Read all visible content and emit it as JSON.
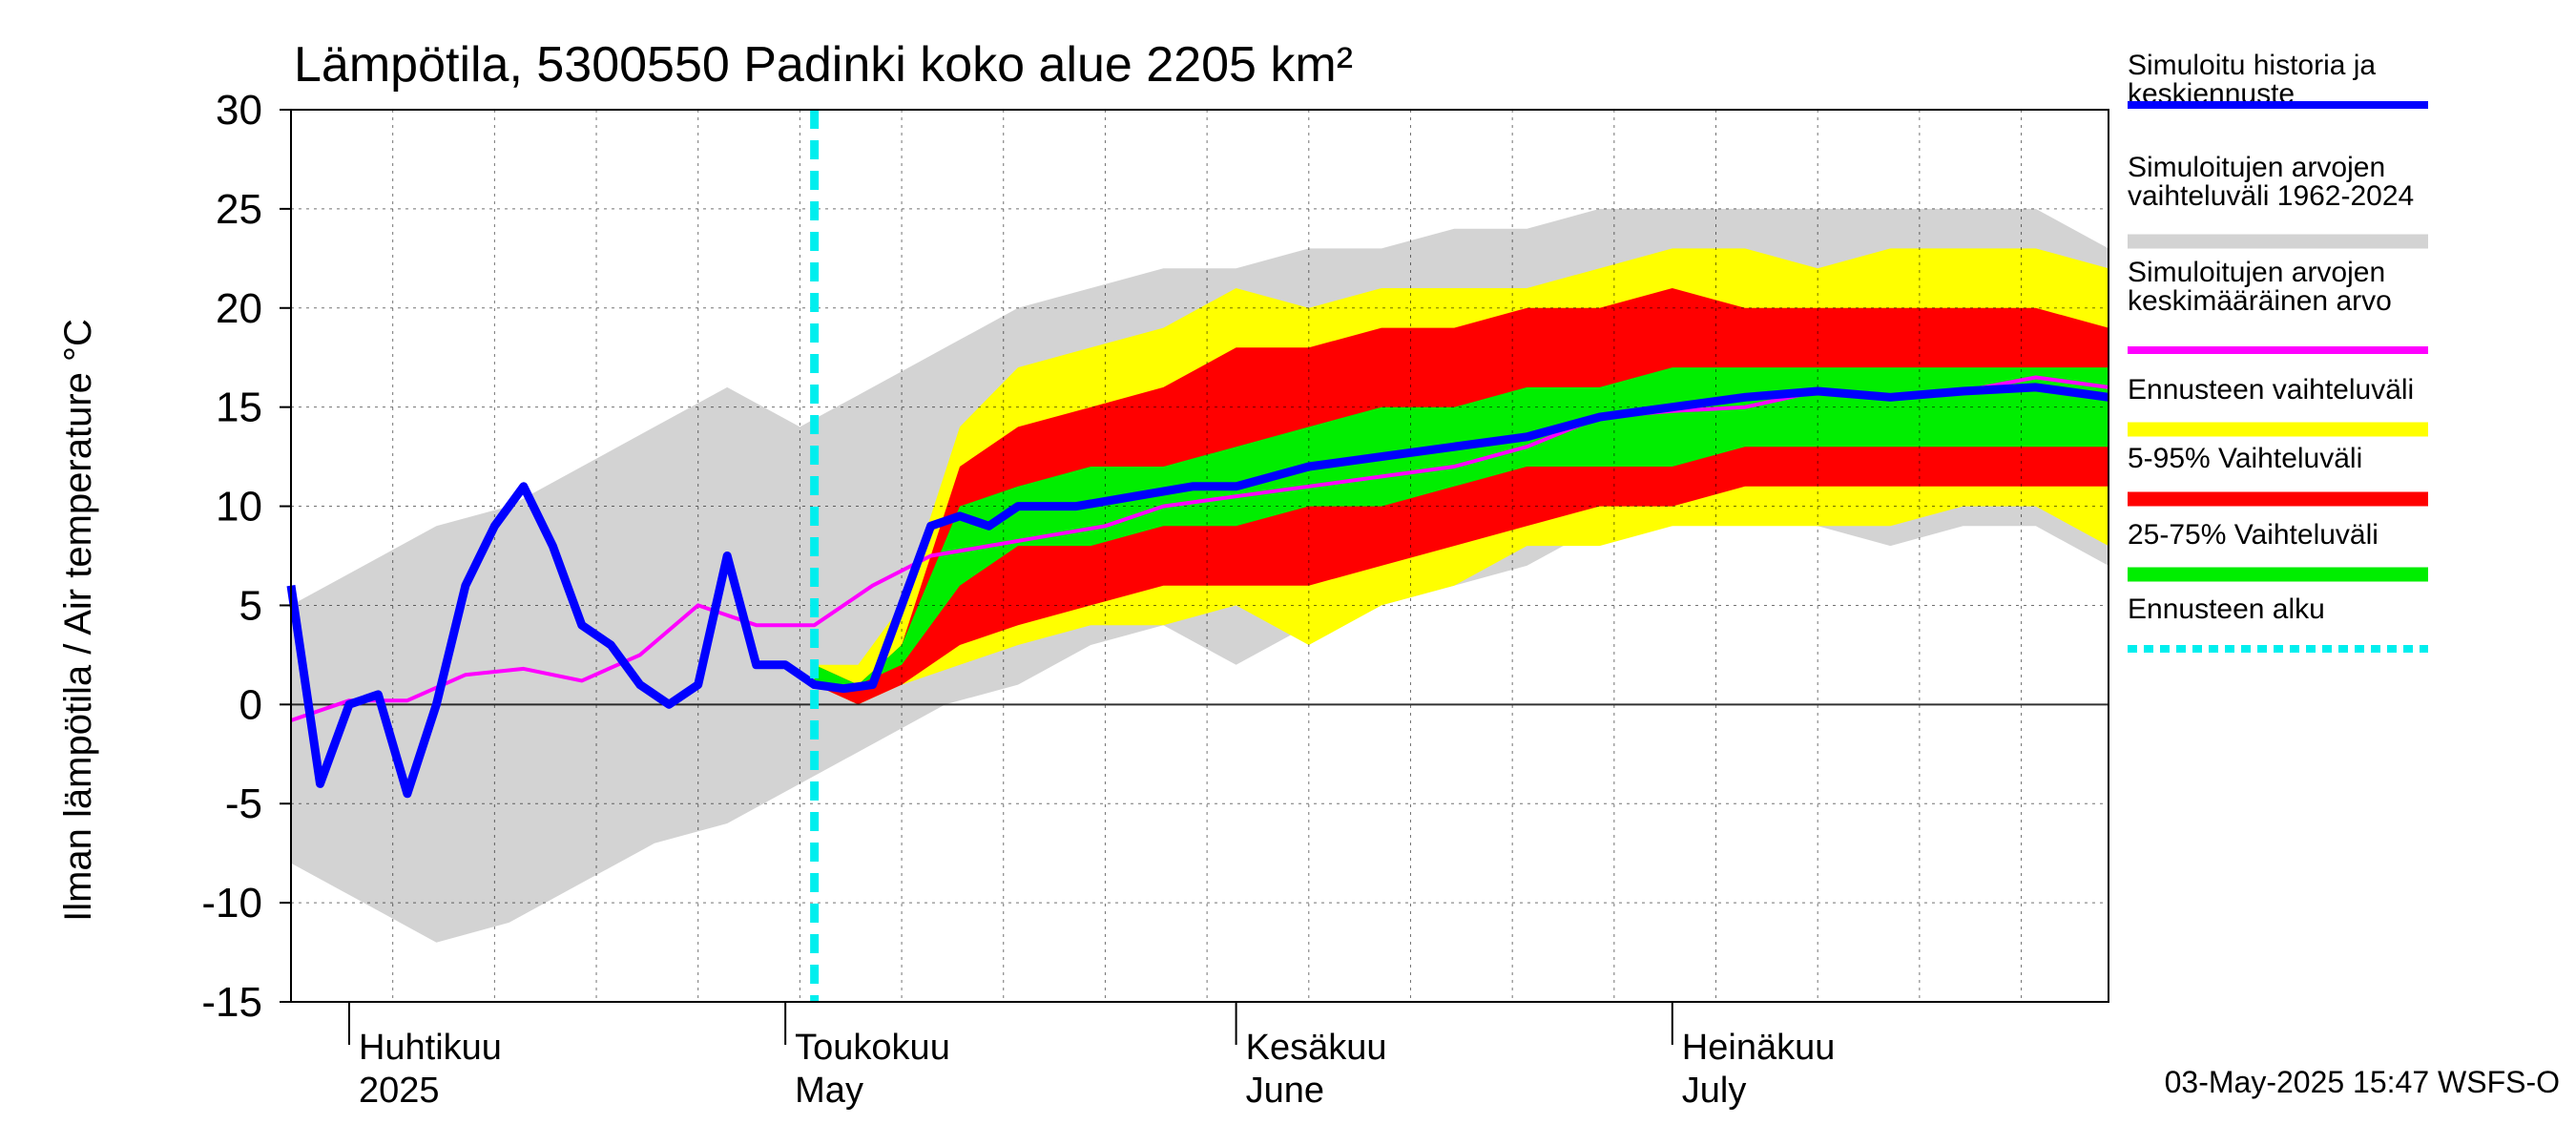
{
  "chart_data": {
    "type": "area",
    "title": "Lämpötila, 5300550 Padinki koko alue 2205 km²",
    "ylabel": "Ilman lämpötila / Air temperature   °C",
    "ylim": [
      -15,
      30
    ],
    "yticks": [
      30,
      25,
      20,
      15,
      10,
      5,
      0,
      -5,
      -10,
      -15
    ],
    "xlim": [
      "2025-03-28",
      "2025-07-31"
    ],
    "month_labels": [
      {
        "fi": "Huhtikuu",
        "en": "2025",
        "date": "2025-04-01"
      },
      {
        "fi": "Toukokuu",
        "en": "May",
        "date": "2025-05-01"
      },
      {
        "fi": "Kesäkuu",
        "en": "June",
        "date": "2025-06-01"
      },
      {
        "fi": "Heinäkuu",
        "en": "July",
        "date": "2025-07-01"
      }
    ],
    "forecast_start": "2025-05-03",
    "timestamp": "03-May-2025 15:47 WSFS-O",
    "legend": [
      {
        "label": "Simuloitu historia ja keskiennuste",
        "color": "#0000ff",
        "style": "line"
      },
      {
        "label": "Simuloitujen arvojen vaihteluväli 1962-2024",
        "color": "#d3d3d3",
        "style": "band"
      },
      {
        "label": "Simuloitujen arvojen keskimääräinen arvo",
        "color": "#ff00ff",
        "style": "line"
      },
      {
        "label": "Ennusteen vaihteluväli",
        "color": "#ffff00",
        "style": "band"
      },
      {
        "label": "5-95% Vaihteluväli",
        "color": "#ff0000",
        "style": "band"
      },
      {
        "label": "25-75% Vaihteluväli",
        "color": "#00ee00",
        "style": "band"
      },
      {
        "label": "Ennusteen alku",
        "color": "#00eeee",
        "style": "dashed"
      }
    ],
    "series": [
      {
        "name": "Simuloitujen arvojen vaihteluväli 1962-2024",
        "kind": "band",
        "x": [
          "2025-03-28",
          "2025-04-02",
          "2025-04-07",
          "2025-04-12",
          "2025-04-17",
          "2025-04-22",
          "2025-04-27",
          "2025-05-02",
          "2025-05-07",
          "2025-05-12",
          "2025-05-17",
          "2025-05-22",
          "2025-05-27",
          "2025-06-01",
          "2025-06-06",
          "2025-06-11",
          "2025-06-16",
          "2025-06-21",
          "2025-06-26",
          "2025-07-01",
          "2025-07-06",
          "2025-07-11",
          "2025-07-16",
          "2025-07-21",
          "2025-07-26",
          "2025-07-31"
        ],
        "low": [
          -8,
          -10,
          -12,
          -11,
          -9,
          -7,
          -6,
          -4,
          -2,
          0,
          1,
          3,
          4,
          2,
          4,
          5,
          6,
          7,
          9,
          9,
          10,
          9,
          8,
          9,
          9,
          7
        ],
        "high": [
          5,
          7,
          9,
          10,
          12,
          14,
          16,
          14,
          16,
          18,
          20,
          21,
          22,
          22,
          23,
          23,
          24,
          24,
          25,
          25,
          25,
          25,
          25,
          25,
          25,
          23
        ]
      },
      {
        "name": "Ennusteen vaihteluväli",
        "kind": "band",
        "x": [
          "2025-05-03",
          "2025-05-06",
          "2025-05-09",
          "2025-05-13",
          "2025-05-17",
          "2025-05-22",
          "2025-05-27",
          "2025-06-01",
          "2025-06-06",
          "2025-06-11",
          "2025-06-16",
          "2025-06-21",
          "2025-06-26",
          "2025-07-01",
          "2025-07-06",
          "2025-07-11",
          "2025-07-16",
          "2025-07-21",
          "2025-07-26",
          "2025-07-31"
        ],
        "low": [
          1,
          0,
          1,
          2,
          3,
          4,
          4,
          5,
          3,
          5,
          6,
          8,
          8,
          9,
          9,
          9,
          9,
          10,
          10,
          8
        ],
        "high": [
          2,
          2,
          5,
          14,
          17,
          18,
          19,
          21,
          20,
          21,
          21,
          21,
          22,
          23,
          23,
          22,
          23,
          23,
          23,
          22
        ]
      },
      {
        "name": "5-95% Vaihteluväli",
        "kind": "band",
        "x": [
          "2025-05-03",
          "2025-05-06",
          "2025-05-09",
          "2025-05-13",
          "2025-05-17",
          "2025-05-22",
          "2025-05-27",
          "2025-06-01",
          "2025-06-06",
          "2025-06-11",
          "2025-06-16",
          "2025-06-21",
          "2025-06-26",
          "2025-07-01",
          "2025-07-06",
          "2025-07-11",
          "2025-07-16",
          "2025-07-21",
          "2025-07-26",
          "2025-07-31"
        ],
        "low": [
          1,
          0,
          1,
          3,
          4,
          5,
          6,
          6,
          6,
          7,
          8,
          9,
          10,
          10,
          11,
          11,
          11,
          11,
          11,
          11
        ],
        "high": [
          2,
          1,
          3,
          12,
          14,
          15,
          16,
          18,
          18,
          19,
          19,
          20,
          20,
          21,
          20,
          20,
          20,
          20,
          20,
          19
        ]
      },
      {
        "name": "25-75% Vaihteluväli",
        "kind": "band",
        "x": [
          "2025-05-03",
          "2025-05-06",
          "2025-05-09",
          "2025-05-13",
          "2025-05-17",
          "2025-05-22",
          "2025-05-27",
          "2025-06-01",
          "2025-06-06",
          "2025-06-11",
          "2025-06-16",
          "2025-06-21",
          "2025-06-26",
          "2025-07-01",
          "2025-07-06",
          "2025-07-11",
          "2025-07-16",
          "2025-07-21",
          "2025-07-26",
          "2025-07-31"
        ],
        "low": [
          1,
          1,
          2,
          6,
          8,
          8,
          9,
          9,
          10,
          10,
          11,
          12,
          12,
          12,
          13,
          13,
          13,
          13,
          13,
          13
        ],
        "high": [
          2,
          1,
          3,
          10,
          11,
          12,
          12,
          13,
          14,
          15,
          15,
          16,
          16,
          17,
          17,
          17,
          17,
          17,
          17,
          17
        ]
      },
      {
        "name": "Simuloitujen arvojen keskimääräinen arvo",
        "kind": "line",
        "x": [
          "2025-03-28",
          "2025-04-01",
          "2025-04-05",
          "2025-04-09",
          "2025-04-13",
          "2025-04-17",
          "2025-04-21",
          "2025-04-25",
          "2025-04-29",
          "2025-05-03",
          "2025-05-07",
          "2025-05-11",
          "2025-05-15",
          "2025-05-19",
          "2025-05-23",
          "2025-05-27",
          "2025-06-01",
          "2025-06-06",
          "2025-06-11",
          "2025-06-16",
          "2025-06-21",
          "2025-06-26",
          "2025-07-01",
          "2025-07-06",
          "2025-07-11",
          "2025-07-16",
          "2025-07-21",
          "2025-07-26",
          "2025-07-31"
        ],
        "y": [
          -0.8,
          0.2,
          0.2,
          1.5,
          1.8,
          1.2,
          2.5,
          5,
          4,
          4,
          6,
          7.5,
          8,
          8.5,
          9,
          10,
          10.5,
          11,
          11.5,
          12,
          13,
          14.5,
          14.8,
          15,
          15.8,
          15.5,
          15.8,
          16.5,
          16
        ]
      },
      {
        "name": "Simuloitu historia ja keskiennuste",
        "kind": "line",
        "x": [
          "2025-03-28",
          "2025-03-30",
          "2025-04-01",
          "2025-04-03",
          "2025-04-05",
          "2025-04-07",
          "2025-04-09",
          "2025-04-11",
          "2025-04-13",
          "2025-04-15",
          "2025-04-17",
          "2025-04-19",
          "2025-04-21",
          "2025-04-23",
          "2025-04-25",
          "2025-04-27",
          "2025-04-29",
          "2025-05-01",
          "2025-05-03",
          "2025-05-05",
          "2025-05-07",
          "2025-05-09",
          "2025-05-11",
          "2025-05-13",
          "2025-05-15",
          "2025-05-17",
          "2025-05-21",
          "2025-05-25",
          "2025-05-29",
          "2025-06-01",
          "2025-06-06",
          "2025-06-11",
          "2025-06-16",
          "2025-06-21",
          "2025-06-26",
          "2025-07-01",
          "2025-07-06",
          "2025-07-11",
          "2025-07-16",
          "2025-07-21",
          "2025-07-26",
          "2025-07-31"
        ],
        "y": [
          6,
          -4,
          0,
          0.5,
          -4.5,
          0,
          6,
          9,
          11,
          8,
          4,
          3,
          1,
          0,
          1,
          7.5,
          2,
          2,
          1,
          0.8,
          1,
          5,
          9,
          9.5,
          9,
          10,
          10,
          10.5,
          11,
          11,
          12,
          12.5,
          13,
          13.5,
          14.5,
          15,
          15.5,
          15.8,
          15.5,
          15.8,
          16,
          15.5
        ]
      }
    ]
  }
}
